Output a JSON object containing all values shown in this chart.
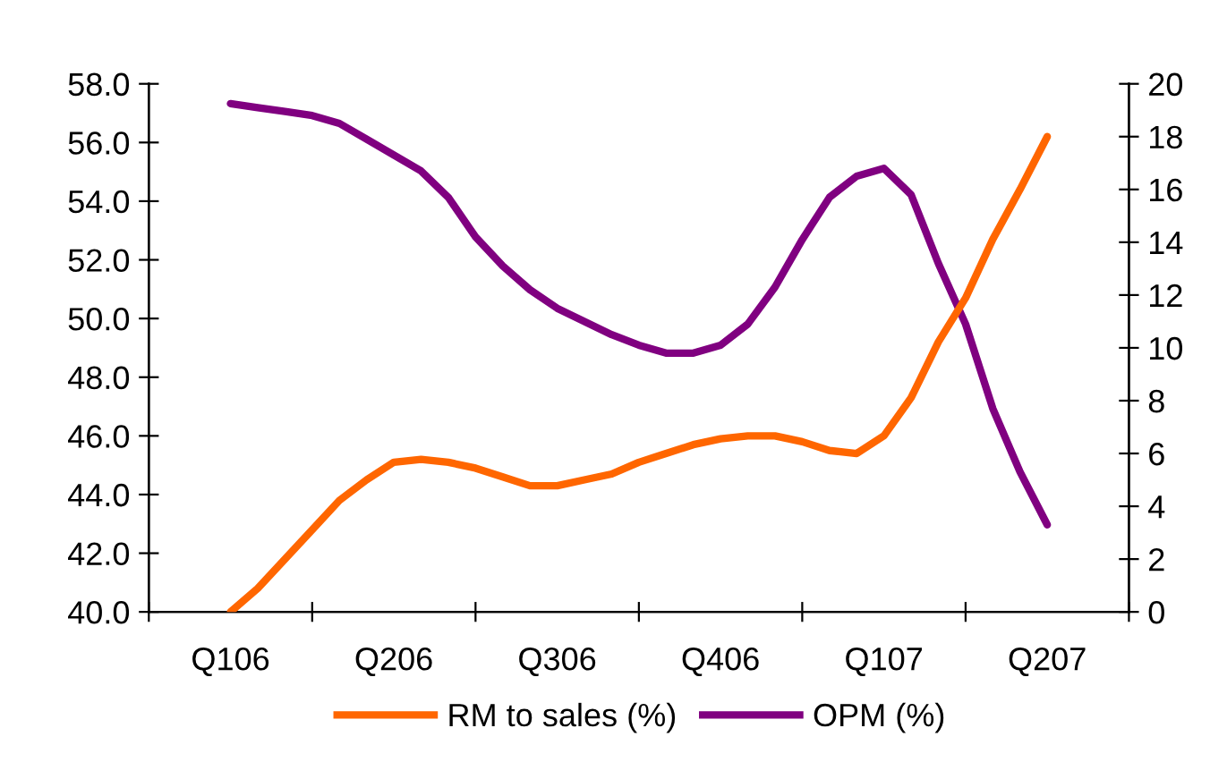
{
  "chart_data": {
    "type": "line",
    "categories": [
      "Q106",
      null,
      null,
      null,
      null,
      null,
      "Q206",
      null,
      null,
      null,
      null,
      null,
      "Q306",
      null,
      null,
      null,
      null,
      null,
      "Q406",
      null,
      null,
      null,
      null,
      null,
      "Q107",
      null,
      null,
      null,
      null,
      null,
      "Q207"
    ],
    "ylim": [
      40,
      58
    ],
    "yticks": [
      {
        "value": 40,
        "label": "40.0"
      },
      {
        "value": 42,
        "label": "42.0"
      },
      {
        "value": 44,
        "label": "44.0"
      },
      {
        "value": 46,
        "label": "46.0"
      },
      {
        "value": 48,
        "label": "48.0"
      },
      {
        "value": 50,
        "label": "50.0"
      },
      {
        "value": 52,
        "label": "52.0"
      },
      {
        "value": 54,
        "label": "54.0"
      },
      {
        "value": 56,
        "label": "56.0"
      },
      {
        "value": 58,
        "label": "58.0"
      }
    ],
    "y2lim": [
      0,
      20
    ],
    "y2ticks": [
      0,
      2,
      4,
      6,
      8,
      10,
      12,
      14,
      16,
      18,
      20
    ],
    "legend": "bottom",
    "series": [
      {
        "name": "RM to sales (%)",
        "color": "#ff6600",
        "values": [
          40.0,
          40.8,
          41.8,
          42.8,
          43.8,
          44.5,
          45.1,
          45.2,
          45.1,
          44.9,
          44.6,
          44.3,
          44.3,
          44.5,
          44.7,
          45.1,
          45.4,
          45.7,
          45.9,
          46.0,
          46.0,
          45.8,
          45.5,
          45.4,
          46.0,
          47.3,
          49.2,
          50.7,
          52.7,
          54.4,
          56.2
        ]
      },
      {
        "name": "OPM (%)",
        "color": "#800080",
        "axis": "y2",
        "values": [
          19.25,
          19.1,
          18.95,
          18.8,
          18.5,
          17.9,
          17.3,
          16.7,
          15.7,
          14.2,
          13.1,
          12.2,
          11.5,
          11.0,
          10.5,
          10.1,
          9.8,
          9.8,
          10.1,
          10.9,
          12.3,
          14.1,
          15.7,
          16.5,
          16.8,
          15.8,
          13.2,
          10.9,
          7.7,
          5.3,
          3.3
        ]
      }
    ]
  }
}
